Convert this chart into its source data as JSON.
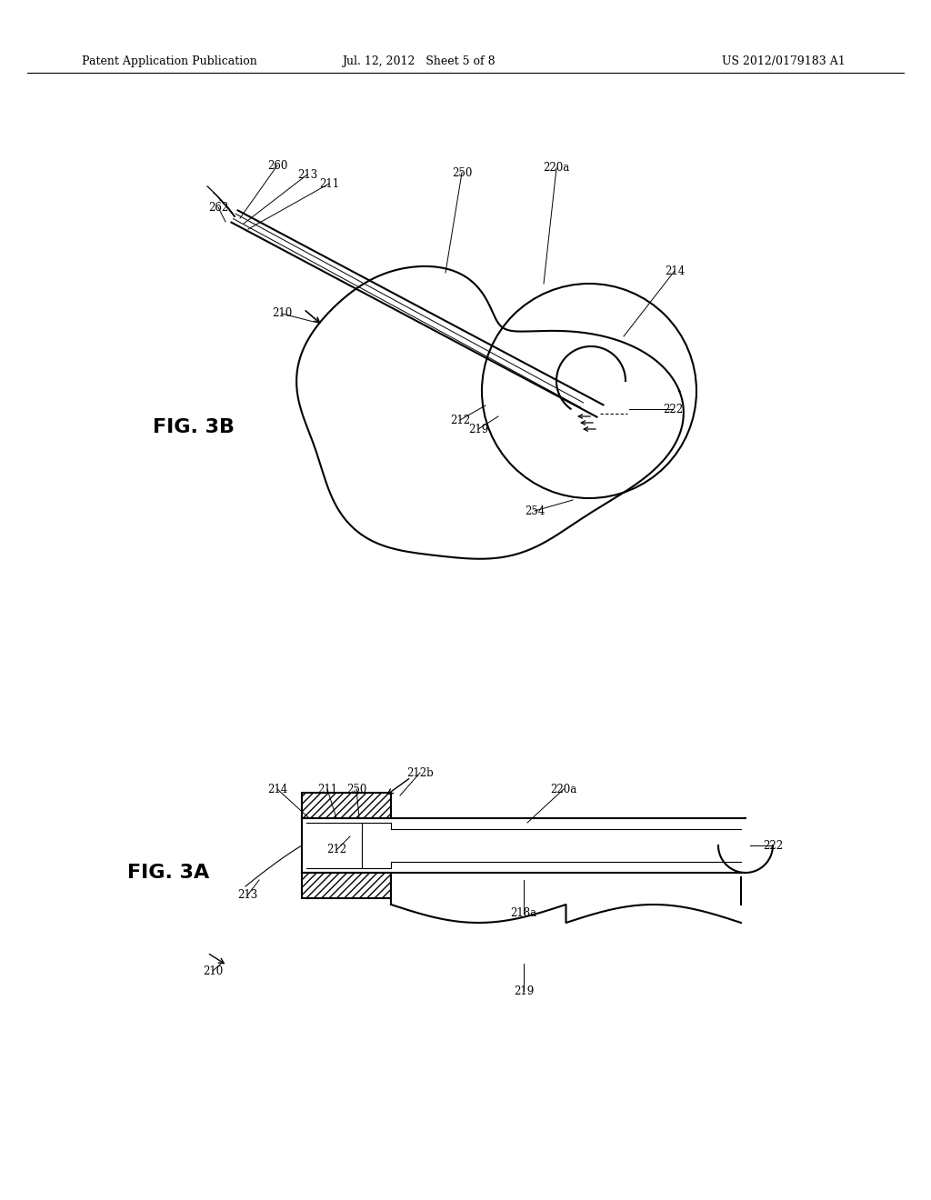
{
  "bg_color": "#ffffff",
  "line_color": "#000000",
  "header_left": "Patent Application Publication",
  "header_mid": "Jul. 12, 2012   Sheet 5 of 8",
  "header_right": "US 2012/0179183 A1",
  "fig3b_label": "FIG. 3B",
  "fig3a_label": "FIG. 3A",
  "label_fontsize": 8.5,
  "header_fontsize": 9.0,
  "fig_label_fontsize": 16
}
